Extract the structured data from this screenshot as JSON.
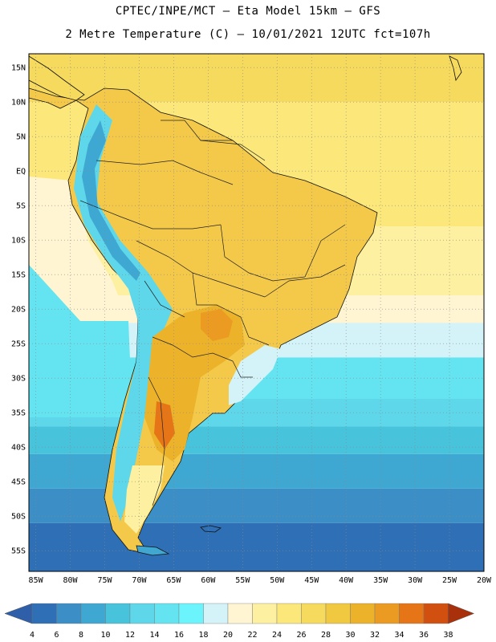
{
  "header": {
    "line1": "CPTEC/INPE/MCT –  Eta Model 15km – GFS",
    "line2": "2 Metre Temperature (C) – 10/01/2021 12UTC fct=107h"
  },
  "map": {
    "lat_labels": [
      "15N",
      "10N",
      "5N",
      "EQ",
      "5S",
      "10S",
      "15S",
      "20S",
      "25S",
      "30S",
      "35S",
      "40S",
      "45S",
      "50S",
      "55S"
    ],
    "lon_labels": [
      "85W",
      "80W",
      "75W",
      "70W",
      "65W",
      "60W",
      "55W",
      "50W",
      "45W",
      "40W",
      "35W",
      "30W",
      "25W",
      "20W"
    ],
    "ocean_bands": [
      {
        "value": 26,
        "color": "#f6da5e"
      },
      {
        "value": 24,
        "color": "#fbe77a"
      },
      {
        "value": 22,
        "color": "#fdf0a0"
      },
      {
        "value": 20,
        "color": "#fff5d2"
      },
      {
        "value": 18,
        "color": "#d3f3f9"
      },
      {
        "value": 16,
        "color": "#64e4f1"
      },
      {
        "value": 14,
        "color": "#5fd7ea"
      },
      {
        "value": 12,
        "color": "#47c3dc"
      },
      {
        "value": 10,
        "color": "#3fa8d2"
      },
      {
        "value": 8,
        "color": "#3b8fc6"
      },
      {
        "value": 6,
        "color": "#2f6fb5"
      }
    ]
  },
  "colorbar": {
    "labels": [
      "4",
      "6",
      "8",
      "10",
      "12",
      "14",
      "16",
      "18",
      "20",
      "22",
      "24",
      "26",
      "28",
      "30",
      "32",
      "34",
      "36",
      "38"
    ],
    "colors": [
      "#2f6fb5",
      "#3b8fc6",
      "#3fa8d2",
      "#47c3dc",
      "#5fd7ea",
      "#64e4f1",
      "#6cf4fc",
      "#d3f3f9",
      "#fff5d2",
      "#fdf0a0",
      "#fbe77a",
      "#f6da5e",
      "#f0c940",
      "#ecb32a",
      "#eb9a22",
      "#e57517",
      "#d15010",
      "#c23a0a"
    ],
    "low_color": "#2f5fa8",
    "high_color": "#a8300a"
  }
}
